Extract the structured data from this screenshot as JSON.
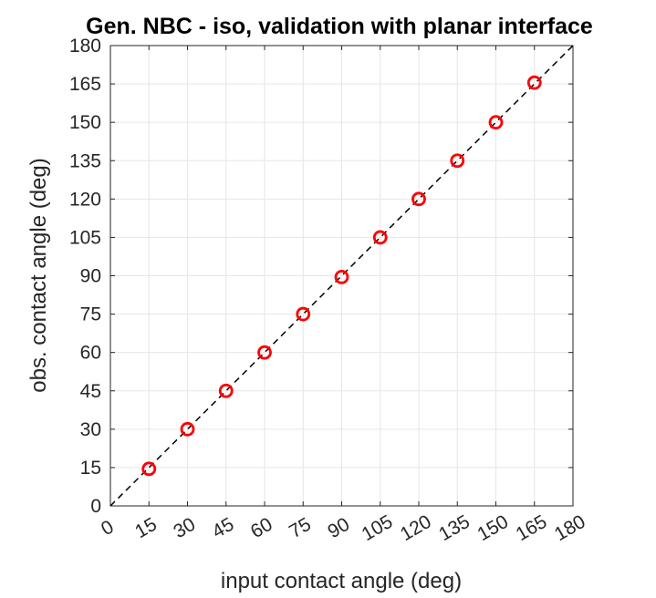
{
  "chart_data": {
    "type": "scatter",
    "title": "Gen. NBC - iso, validation with planar interface",
    "xlabel": "input contact angle (deg)",
    "ylabel": "obs. contact angle (deg)",
    "xlim": [
      0,
      180
    ],
    "ylim": [
      0,
      180
    ],
    "xticks": [
      "0",
      "15",
      "30",
      "45",
      "60",
      "75",
      "90",
      "105",
      "120",
      "135",
      "150",
      "165",
      "180"
    ],
    "yticks": [
      "0",
      "15",
      "30",
      "45",
      "60",
      "75",
      "90",
      "105",
      "120",
      "135",
      "150",
      "165",
      "180"
    ],
    "grid": true,
    "series": [
      {
        "marker": "circle",
        "color": "#ff0000",
        "x": [
          15,
          30,
          45,
          60,
          75,
          90,
          105,
          120,
          135,
          150,
          165
        ],
        "y": [
          14.5,
          30,
          45,
          60,
          75,
          89.5,
          105,
          120,
          135,
          150,
          165.5
        ]
      }
    ],
    "reference_line": {
      "style": "dashed",
      "color": "#000000",
      "x": [
        0,
        180
      ],
      "y": [
        0,
        180
      ]
    },
    "colors": {
      "grid": "#e6e6e6",
      "axis": "#262626",
      "marker": "#ff0000"
    }
  }
}
